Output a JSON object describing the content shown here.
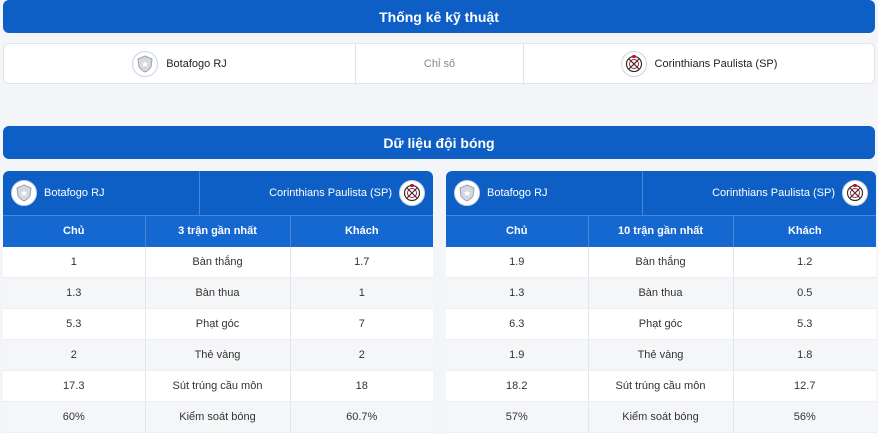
{
  "header": {
    "title": "Thống kê kỹ thuật"
  },
  "comparison": {
    "home_team": "Botafogo RJ",
    "label": "Chỉ số",
    "away_team": "Corinthians Paulista (SP)"
  },
  "team_data": {
    "title": "Dữ liệu đội bóng"
  },
  "panels": [
    {
      "home_team": "Botafogo RJ",
      "away_team": "Corinthians Paulista (SP)",
      "columns": [
        "Chủ",
        "3 trận gần nhất",
        "Khách"
      ],
      "rows": [
        {
          "home": "1",
          "stat": "Bàn thắng",
          "away": "1.7"
        },
        {
          "home": "1.3",
          "stat": "Bàn thua",
          "away": "1"
        },
        {
          "home": "5.3",
          "stat": "Phạt góc",
          "away": "7"
        },
        {
          "home": "2",
          "stat": "Thẻ vàng",
          "away": "2"
        },
        {
          "home": "17.3",
          "stat": "Sút trúng cầu môn",
          "away": "18"
        },
        {
          "home": "60%",
          "stat": "Kiểm soát bóng",
          "away": "60.7%"
        }
      ]
    },
    {
      "home_team": "Botafogo RJ",
      "away_team": "Corinthians Paulista (SP)",
      "columns": [
        "Chủ",
        "10 trận gần nhất",
        "Khách"
      ],
      "rows": [
        {
          "home": "1.9",
          "stat": "Bàn thắng",
          "away": "1.2"
        },
        {
          "home": "1.3",
          "stat": "Bàn thua",
          "away": "0.5"
        },
        {
          "home": "6.3",
          "stat": "Phạt góc",
          "away": "5.3"
        },
        {
          "home": "1.9",
          "stat": "Thẻ vàng",
          "away": "1.8"
        },
        {
          "home": "18.2",
          "stat": "Sút trúng cầu môn",
          "away": "12.7"
        },
        {
          "home": "57%",
          "stat": "Kiểm soát bóng",
          "away": "56%"
        }
      ]
    }
  ],
  "icons": {
    "home": "botafogo-logo-icon",
    "away": "corinthians-logo-icon"
  },
  "colors": {
    "primary": "#0d5fc6",
    "header_row": "#1568d0",
    "background": "#f4f5f9"
  }
}
